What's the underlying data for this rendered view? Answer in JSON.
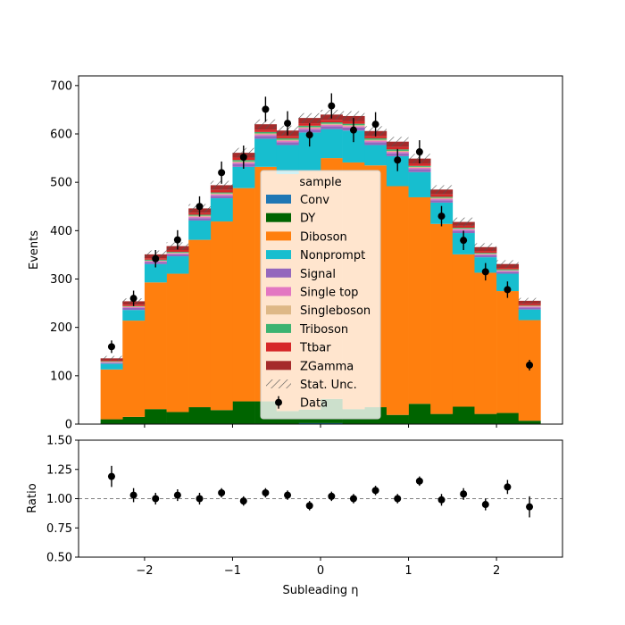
{
  "chart_data": [
    {
      "type": "bar",
      "stacked": true,
      "xlabel": "Subleading η",
      "ylabel": "Events",
      "xlim": [
        -2.75,
        2.75
      ],
      "ylim": [
        0,
        720
      ],
      "x_ticks": [
        -2,
        -1,
        0,
        1,
        2
      ],
      "x_tick_labels": [
        "−2",
        "−1",
        "0",
        "1",
        "2"
      ],
      "y_ticks": [
        0,
        100,
        200,
        300,
        400,
        500,
        600,
        700
      ],
      "bin_edges": [
        -2.5,
        -2.25,
        -2.0,
        -1.75,
        -1.5,
        -1.25,
        -1.0,
        -0.75,
        -0.5,
        -0.25,
        0.0,
        0.25,
        0.5,
        0.75,
        1.0,
        1.25,
        1.5,
        1.75,
        2.0,
        2.25,
        2.5
      ],
      "series": [
        {
          "name": "Conv",
          "color": "#1f77b4",
          "values": [
            1,
            1,
            1,
            1,
            1,
            1,
            1,
            1,
            1,
            2,
            2,
            1,
            1,
            1,
            1,
            1,
            1,
            1,
            1,
            1
          ]
        },
        {
          "name": "DY",
          "color": "#006400",
          "values": [
            9,
            14,
            30,
            24,
            34,
            28,
            46,
            46,
            26,
            28,
            50,
            30,
            34,
            18,
            41,
            20,
            35,
            20,
            22,
            6
          ]
        },
        {
          "name": "Diboson",
          "color": "#ff7f0e",
          "values": [
            103,
            199,
            262,
            286,
            346,
            390,
            441,
            485,
            490,
            495,
            498,
            510,
            500,
            473,
            427,
            393,
            315,
            292,
            252,
            208
          ]
        },
        {
          "name": "Nonprompt",
          "color": "#17becf",
          "values": [
            12,
            22,
            38,
            36,
            40,
            48,
            44,
            58,
            60,
            78,
            60,
            66,
            42,
            62,
            52,
            44,
            44,
            32,
            36,
            22
          ]
        },
        {
          "name": "Signal",
          "color": "#9467bd",
          "values": [
            2,
            4,
            4,
            4,
            5,
            5,
            6,
            6,
            6,
            6,
            6,
            6,
            6,
            6,
            6,
            5,
            5,
            4,
            4,
            4
          ]
        },
        {
          "name": "Single top",
          "color": "#e377c2",
          "values": [
            1,
            2,
            2,
            2,
            3,
            3,
            3,
            3,
            3,
            3,
            3,
            3,
            3,
            3,
            3,
            3,
            3,
            2,
            2,
            2
          ]
        },
        {
          "name": "Singleboson",
          "color": "#deb887",
          "values": [
            1,
            1,
            1,
            1,
            2,
            2,
            2,
            2,
            2,
            2,
            2,
            2,
            2,
            2,
            2,
            2,
            1,
            1,
            1,
            1
          ]
        },
        {
          "name": "Triboson",
          "color": "#3cb371",
          "values": [
            1,
            1,
            2,
            2,
            2,
            2,
            3,
            3,
            3,
            3,
            3,
            3,
            3,
            3,
            2,
            2,
            2,
            2,
            2,
            1
          ]
        },
        {
          "name": "Ttbar",
          "color": "#d62728",
          "values": [
            2,
            3,
            3,
            4,
            4,
            5,
            5,
            5,
            5,
            5,
            5,
            5,
            5,
            5,
            5,
            5,
            4,
            4,
            3,
            3
          ]
        },
        {
          "name": "ZGamma",
          "color": "#a52a2a",
          "values": [
            4,
            7,
            8,
            8,
            9,
            10,
            10,
            11,
            11,
            11,
            11,
            11,
            10,
            11,
            10,
            10,
            8,
            8,
            8,
            7
          ]
        }
      ],
      "stat_unc": [
        5,
        6,
        8,
        8,
        9,
        9,
        10,
        10,
        10,
        10,
        10,
        10,
        10,
        10,
        10,
        9,
        9,
        8,
        8,
        6
      ],
      "data": {
        "name": "Data",
        "x": [
          -2.375,
          -2.125,
          -1.875,
          -1.625,
          -1.375,
          -1.125,
          -0.875,
          -0.625,
          -0.375,
          -0.125,
          0.125,
          0.375,
          0.625,
          0.875,
          1.125,
          1.375,
          1.625,
          1.875,
          2.125,
          2.375
        ],
        "y": [
          160,
          260,
          342,
          381,
          450,
          520,
          552,
          651,
          622,
          598,
          658,
          608,
          620,
          546,
          563,
          430,
          380,
          315,
          278,
          122
        ],
        "yerr": [
          13,
          16,
          18,
          20,
          21,
          23,
          24,
          26,
          25,
          24,
          26,
          25,
          25,
          23,
          24,
          21,
          20,
          18,
          17,
          11
        ]
      },
      "legend": {
        "title": "sample",
        "position": "center",
        "unc_label": "Stat. Unc.",
        "data_label": "Data"
      }
    },
    {
      "type": "scatter",
      "xlabel": "Subleading η",
      "ylabel": "Ratio",
      "xlim": [
        -2.75,
        2.75
      ],
      "ylim": [
        0.5,
        1.5
      ],
      "y_ticks": [
        0.5,
        0.75,
        1.0,
        1.25,
        1.5
      ],
      "y_tick_labels": [
        "0.50",
        "0.75",
        "1.00",
        "1.25",
        "1.50"
      ],
      "reference_line": 1.0,
      "x": [
        -2.375,
        -2.125,
        -1.875,
        -1.625,
        -1.375,
        -1.125,
        -0.875,
        -0.625,
        -0.375,
        -0.125,
        0.125,
        0.375,
        0.625,
        0.875,
        1.125,
        1.375,
        1.625,
        1.875,
        2.125,
        2.375
      ],
      "y": [
        1.19,
        1.03,
        1.0,
        1.03,
        1.0,
        1.05,
        0.98,
        1.05,
        1.03,
        0.94,
        1.02,
        1.0,
        1.07,
        1.0,
        1.15,
        0.99,
        1.04,
        0.95,
        1.1,
        0.93
      ],
      "yerr": [
        0.09,
        0.06,
        0.05,
        0.05,
        0.05,
        0.04,
        0.04,
        0.04,
        0.04,
        0.04,
        0.04,
        0.04,
        0.04,
        0.04,
        0.04,
        0.05,
        0.05,
        0.05,
        0.06,
        0.09
      ]
    }
  ]
}
